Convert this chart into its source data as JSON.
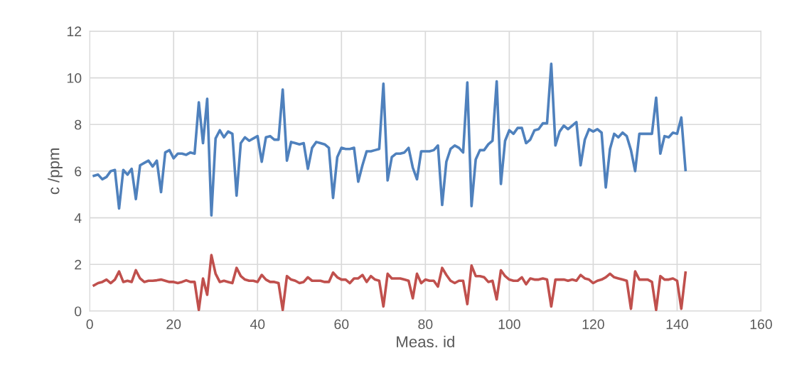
{
  "chart_data": {
    "type": "line",
    "xlabel": "Meas. id",
    "ylabel": "c /ppm",
    "x": [
      1,
      2,
      3,
      4,
      5,
      6,
      7,
      8,
      9,
      10,
      11,
      12,
      13,
      14,
      15,
      16,
      17,
      18,
      19,
      20,
      21,
      22,
      23,
      24,
      25,
      26,
      27,
      28,
      29,
      30,
      31,
      32,
      33,
      34,
      35,
      36,
      37,
      38,
      39,
      40,
      41,
      42,
      43,
      44,
      45,
      46,
      47,
      48,
      49,
      50,
      51,
      52,
      53,
      54,
      55,
      56,
      57,
      58,
      59,
      60,
      61,
      62,
      63,
      64,
      65,
      66,
      67,
      68,
      69,
      70,
      71,
      72,
      73,
      74,
      75,
      76,
      77,
      78,
      79,
      80,
      81,
      82,
      83,
      84,
      85,
      86,
      87,
      88,
      89,
      90,
      91,
      92,
      93,
      94,
      95,
      96,
      97,
      98,
      99,
      100,
      101,
      102,
      103,
      104,
      105,
      106,
      107,
      108,
      109,
      110,
      111,
      112,
      113,
      114,
      115,
      116,
      117,
      118,
      119,
      120,
      121,
      122,
      123,
      124,
      125,
      126,
      127,
      128,
      129,
      130,
      131,
      132,
      133,
      134,
      135,
      136,
      137,
      138,
      139,
      140,
      141,
      142
    ],
    "series": [
      {
        "color": "#4f81bd",
        "values": [
          5.8,
          5.85,
          5.65,
          5.75,
          6.0,
          6.05,
          4.4,
          6.05,
          5.85,
          6.1,
          4.8,
          6.25,
          6.35,
          6.45,
          6.2,
          6.45,
          5.1,
          6.8,
          6.9,
          6.55,
          6.75,
          6.75,
          6.7,
          6.8,
          6.75,
          8.95,
          7.2,
          9.1,
          4.1,
          7.4,
          7.75,
          7.45,
          7.7,
          7.6,
          4.95,
          7.2,
          7.45,
          7.3,
          7.4,
          7.5,
          6.4,
          7.45,
          7.5,
          7.35,
          7.35,
          9.5,
          6.45,
          7.25,
          7.2,
          7.15,
          7.2,
          6.1,
          7.0,
          7.25,
          7.2,
          7.15,
          7.0,
          4.85,
          6.6,
          7.0,
          6.95,
          6.95,
          7.0,
          5.55,
          6.25,
          6.85,
          6.85,
          6.9,
          6.95,
          9.75,
          5.6,
          6.6,
          6.75,
          6.75,
          6.8,
          7.0,
          6.15,
          5.65,
          6.85,
          6.85,
          6.85,
          6.9,
          7.1,
          4.55,
          6.4,
          6.95,
          7.1,
          7.0,
          6.8,
          9.8,
          4.5,
          6.5,
          6.9,
          6.9,
          7.15,
          7.3,
          9.85,
          5.45,
          7.3,
          7.75,
          7.6,
          7.85,
          7.85,
          7.2,
          7.35,
          7.75,
          7.8,
          8.05,
          8.05,
          10.6,
          7.1,
          7.7,
          7.95,
          7.8,
          7.95,
          8.1,
          6.25,
          7.35,
          7.8,
          7.7,
          7.8,
          7.65,
          5.3,
          6.95,
          7.6,
          7.45,
          7.65,
          7.5,
          6.9,
          6.0,
          7.6,
          7.6,
          7.6,
          7.6,
          9.15,
          6.75,
          7.5,
          7.45,
          7.65,
          7.6,
          8.3,
          6.05
        ]
      },
      {
        "color": "#c0504d",
        "values": [
          1.1,
          1.2,
          1.25,
          1.35,
          1.2,
          1.35,
          1.7,
          1.25,
          1.3,
          1.25,
          1.75,
          1.4,
          1.25,
          1.3,
          1.3,
          1.32,
          1.35,
          1.3,
          1.25,
          1.25,
          1.2,
          1.25,
          1.32,
          1.25,
          1.25,
          0.05,
          1.4,
          0.7,
          2.4,
          1.6,
          1.25,
          1.3,
          1.25,
          1.2,
          1.85,
          1.5,
          1.35,
          1.3,
          1.3,
          1.25,
          1.55,
          1.35,
          1.25,
          1.25,
          1.2,
          0.05,
          1.5,
          1.35,
          1.3,
          1.2,
          1.25,
          1.45,
          1.3,
          1.3,
          1.3,
          1.25,
          1.25,
          1.65,
          1.45,
          1.35,
          1.35,
          1.2,
          1.4,
          1.4,
          1.55,
          1.25,
          1.5,
          1.35,
          1.3,
          0.2,
          1.6,
          1.4,
          1.4,
          1.4,
          1.35,
          1.3,
          0.55,
          1.6,
          1.2,
          1.35,
          1.3,
          1.3,
          1.05,
          1.85,
          1.55,
          1.3,
          1.2,
          1.3,
          1.3,
          0.3,
          1.95,
          1.5,
          1.5,
          1.45,
          1.25,
          1.3,
          0.5,
          1.75,
          1.5,
          1.35,
          1.3,
          1.3,
          1.45,
          1.15,
          1.4,
          1.35,
          1.35,
          1.4,
          1.35,
          0.2,
          1.35,
          1.35,
          1.35,
          1.3,
          1.35,
          1.3,
          1.55,
          1.4,
          1.35,
          1.2,
          1.3,
          1.35,
          1.45,
          1.6,
          1.45,
          1.4,
          1.35,
          1.3,
          0.1,
          1.7,
          1.35,
          1.35,
          1.35,
          1.25,
          0.05,
          1.5,
          1.35,
          1.35,
          1.4,
          1.3,
          0.1,
          1.65
        ]
      }
    ],
    "xlim": [
      0,
      160
    ],
    "xticks": [
      0,
      20,
      40,
      60,
      80,
      100,
      120,
      140,
      160
    ],
    "ylim": [
      0,
      12
    ],
    "yticks": [
      0,
      2,
      4,
      6,
      8,
      10,
      12
    ],
    "grid": true,
    "marker": "none",
    "line_style": "solid"
  }
}
